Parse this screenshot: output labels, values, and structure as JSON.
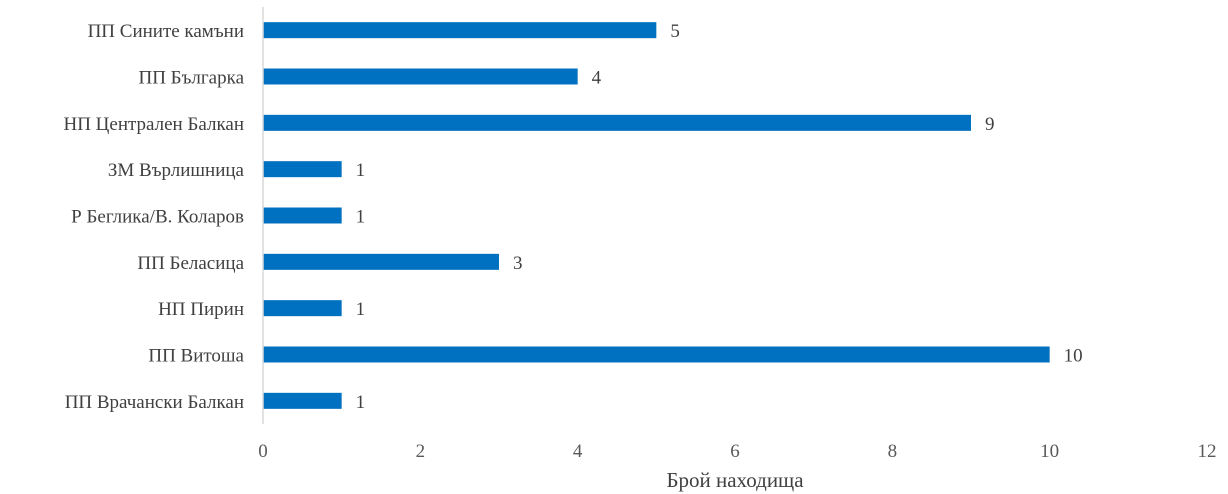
{
  "chart_data": {
    "type": "bar",
    "orientation": "horizontal",
    "categories": [
      "ПП Врачански Балкан",
      "ПП Витоша",
      "НП Пирин",
      "ПП Беласица",
      "Р Беглика/В. Коларов",
      "ЗМ Върлишница",
      "НП Централен Балкан",
      "ПП Българка",
      "ПП Сините камъни"
    ],
    "values": [
      1,
      10,
      1,
      3,
      1,
      1,
      9,
      4,
      5
    ],
    "xlabel": "Брой находища",
    "ylabel": "",
    "xlim": [
      0,
      12
    ],
    "xticks": [
      "0",
      "2",
      "4",
      "6",
      "8",
      "10",
      "12"
    ],
    "grid": false,
    "data_labels": true,
    "colors": {
      "bar": "#0070C0",
      "axis": "#D9D9D9"
    }
  }
}
